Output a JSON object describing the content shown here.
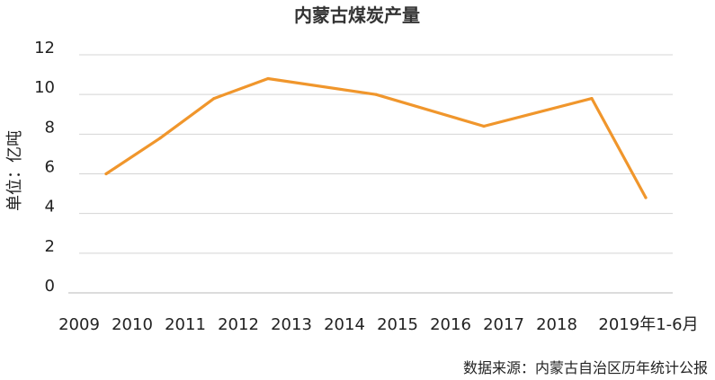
{
  "chart_data": {
    "type": "line",
    "title": "内蒙古煤炭产量",
    "ylabel": "单位：亿吨",
    "source": "数据来源：内蒙古自治区历年统计公报",
    "categories": [
      "2009",
      "2010",
      "2011",
      "2012",
      "2013",
      "2014",
      "2015",
      "2016",
      "2017",
      "2018",
      "2019年1-6月"
    ],
    "series": [
      {
        "values": [
          6.0,
          7.8,
          9.8,
          10.8,
          null,
          10.0,
          null,
          8.4,
          null,
          9.8,
          4.8
        ]
      }
    ],
    "points": [
      {
        "x": 2009.5,
        "y": 6.0
      },
      {
        "x": 2010.5,
        "y": 7.8
      },
      {
        "x": 2011.5,
        "y": 9.8
      },
      {
        "x": 2012.5,
        "y": 10.8
      },
      {
        "x": 2014.5,
        "y": 10.0
      },
      {
        "x": 2016.5,
        "y": 8.4
      },
      {
        "x": 2018.5,
        "y": 9.8
      },
      {
        "x": 2019.5,
        "y": 4.8
      }
    ],
    "yticks": [
      "0",
      "2",
      "4",
      "6",
      "8",
      "10",
      "12"
    ],
    "ylim": [
      0,
      12
    ],
    "grid": true,
    "legend": "none",
    "line_color": "#F0962C"
  }
}
